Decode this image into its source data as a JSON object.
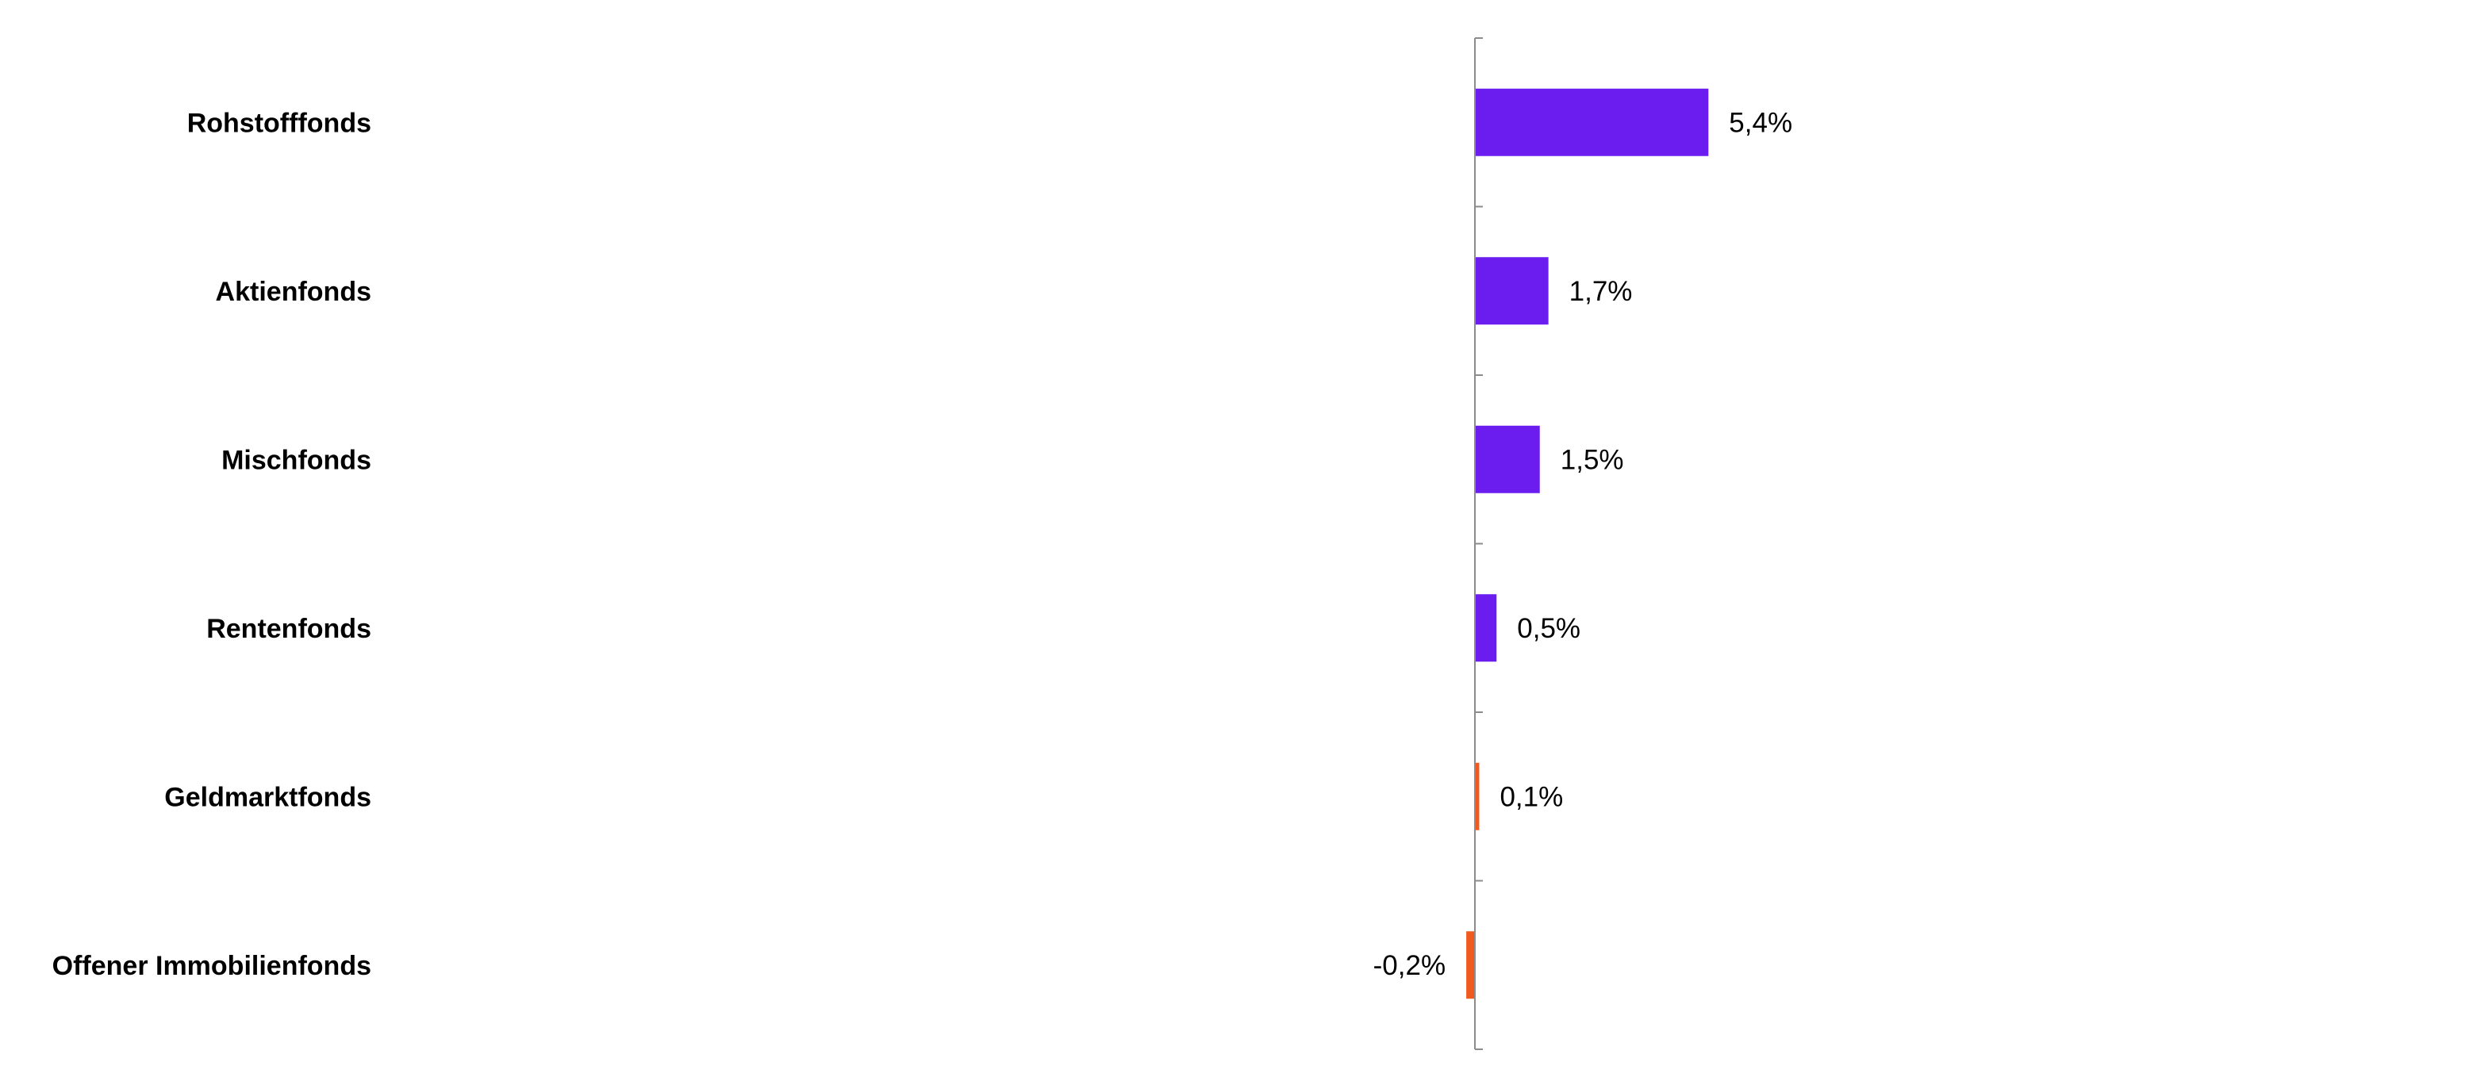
{
  "chart_data": {
    "type": "bar",
    "orientation": "horizontal",
    "categories": [
      "Rohstofffonds",
      "Aktienfonds",
      "Mischfonds",
      "Rentenfonds",
      "Geldmarktfonds",
      "Offener Immobilienfonds"
    ],
    "values": [
      5.4,
      1.7,
      1.5,
      0.5,
      0.1,
      -0.2
    ],
    "data_labels": [
      "5,4%",
      "1,7%",
      "1,5%",
      "0,5%",
      "0,1%",
      "-0,2%"
    ],
    "bar_colors": [
      "#6B1CEE",
      "#6B1CEE",
      "#6B1CEE",
      "#6B1CEE",
      "#F05A1E",
      "#F05A1E"
    ],
    "axis_color": "#8C8C8C",
    "title": "",
    "xlabel": "",
    "ylabel": "",
    "grid": false,
    "legend": "none"
  }
}
